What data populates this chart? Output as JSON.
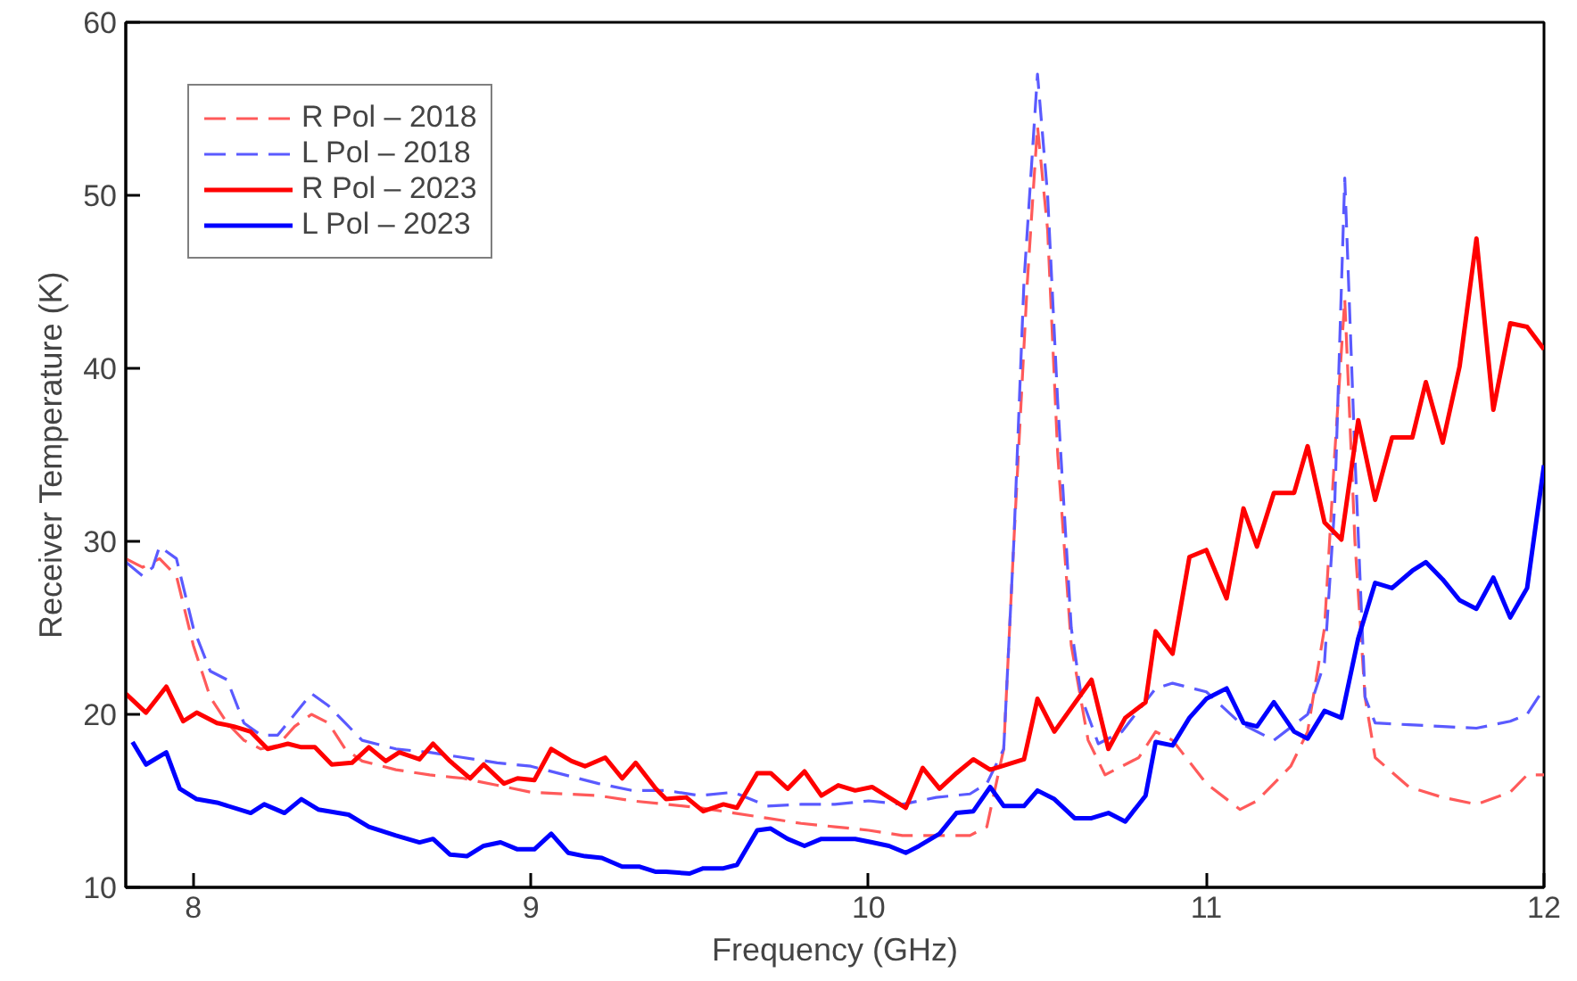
{
  "chart_data": {
    "type": "line",
    "xlabel": "Frequency (GHz)",
    "ylabel": "Receiver Temperature (K)",
    "xlim": [
      7.8,
      12.0
    ],
    "ylim": [
      10,
      60
    ],
    "xticks": [
      8,
      9,
      10,
      11,
      12
    ],
    "yticks": [
      10,
      20,
      30,
      40,
      50,
      60
    ],
    "grid": false,
    "legend": "top left",
    "marker": "none",
    "series": [
      {
        "name": "R Pol – 2018",
        "color": "#ff5a5a",
        "line_style": "dashed",
        "x": [
          7.8,
          7.85,
          7.9,
          7.95,
          8.0,
          8.05,
          8.1,
          8.15,
          8.2,
          8.25,
          8.3,
          8.35,
          8.4,
          8.45,
          8.5,
          8.6,
          8.7,
          8.8,
          8.9,
          9.0,
          9.1,
          9.2,
          9.3,
          9.4,
          9.5,
          9.6,
          9.7,
          9.8,
          9.9,
          10.0,
          10.1,
          10.2,
          10.3,
          10.35,
          10.4,
          10.43,
          10.47,
          10.5,
          10.53,
          10.56,
          10.6,
          10.65,
          10.7,
          10.8,
          10.85,
          10.9,
          11.0,
          11.1,
          11.15,
          11.25,
          11.3,
          11.35,
          11.38,
          11.41,
          11.44,
          11.47,
          11.5,
          11.6,
          11.7,
          11.8,
          11.9,
          11.95,
          12.0
        ],
        "values": [
          29,
          28.5,
          29,
          28,
          24,
          21,
          19.5,
          18.5,
          18,
          18.2,
          19.3,
          20,
          19.5,
          18,
          17.3,
          16.8,
          16.5,
          16.3,
          15.9,
          15.5,
          15.4,
          15.3,
          15,
          14.8,
          14.6,
          14.3,
          14,
          13.7,
          13.5,
          13.3,
          13,
          13,
          13,
          13.5,
          18,
          30,
          45,
          54,
          48,
          35,
          24,
          18.5,
          16.5,
          17.5,
          19,
          18.5,
          16,
          14.5,
          15,
          17,
          19,
          25,
          35,
          44,
          30,
          21,
          17.5,
          15.8,
          15.2,
          14.8,
          15.5,
          16.5,
          16.5
        ]
      },
      {
        "name": "L Pol – 2018",
        "color": "#5a5aff",
        "line_style": "dashed",
        "x": [
          7.8,
          7.85,
          7.88,
          7.9,
          7.95,
          8.0,
          8.05,
          8.1,
          8.15,
          8.2,
          8.25,
          8.3,
          8.35,
          8.4,
          8.45,
          8.5,
          8.6,
          8.7,
          8.8,
          8.9,
          9.0,
          9.1,
          9.2,
          9.3,
          9.4,
          9.5,
          9.6,
          9.7,
          9.8,
          9.9,
          10.0,
          10.1,
          10.2,
          10.3,
          10.35,
          10.4,
          10.43,
          10.46,
          10.5,
          10.53,
          10.56,
          10.6,
          10.63,
          10.68,
          10.75,
          10.85,
          10.9,
          11.0,
          11.1,
          11.2,
          11.3,
          11.35,
          11.38,
          11.41,
          11.44,
          11.47,
          11.5,
          11.6,
          11.7,
          11.8,
          11.9,
          11.95,
          12.0
        ],
        "values": [
          28.8,
          28,
          28.5,
          29.7,
          29,
          25,
          22.5,
          22,
          19.5,
          18.8,
          18.8,
          20,
          21.2,
          20.5,
          19.5,
          18.5,
          18,
          17.8,
          17.5,
          17.2,
          17,
          16.5,
          16,
          15.6,
          15.6,
          15.3,
          15.5,
          14.7,
          14.8,
          14.8,
          15,
          14.8,
          15.2,
          15.4,
          16,
          18,
          30,
          45,
          57,
          50,
          38,
          25,
          21,
          18.3,
          19,
          21.5,
          21.8,
          21.3,
          19.5,
          18.5,
          20,
          23,
          32,
          51,
          35,
          21,
          19.5,
          19.4,
          19.3,
          19.2,
          19.6,
          20,
          21.5
        ]
      },
      {
        "name": "R Pol – 2023",
        "color": "#ff0000",
        "line_style": "solid",
        "x": [
          7.8,
          7.86,
          7.92,
          7.97,
          8.01,
          8.07,
          8.12,
          8.17,
          8.22,
          8.28,
          8.32,
          8.36,
          8.41,
          8.47,
          8.52,
          8.57,
          8.61,
          8.67,
          8.71,
          8.76,
          8.82,
          8.86,
          8.92,
          8.96,
          9.01,
          9.06,
          9.12,
          9.16,
          9.22,
          9.27,
          9.31,
          9.37,
          9.4,
          9.46,
          9.51,
          9.57,
          9.61,
          9.67,
          9.71,
          9.76,
          9.81,
          9.86,
          9.91,
          9.96,
          10.01,
          10.06,
          10.11,
          10.16,
          10.21,
          10.26,
          10.31,
          10.36,
          10.46,
          10.5,
          10.55,
          10.66,
          10.71,
          10.76,
          10.82,
          10.85,
          10.9,
          10.95,
          11.0,
          11.06,
          11.11,
          11.15,
          11.2,
          11.26,
          11.3,
          11.35,
          11.4,
          11.45,
          11.5,
          11.55,
          11.61,
          11.65,
          11.7,
          11.75,
          11.8,
          11.85,
          11.9,
          11.95,
          12.0
        ],
        "values": [
          21.2,
          20.1,
          21.6,
          19.6,
          20.1,
          19.5,
          19.3,
          19.0,
          18.0,
          18.3,
          18.1,
          18.1,
          17.1,
          17.2,
          18.1,
          17.3,
          17.8,
          17.4,
          18.3,
          17.3,
          16.3,
          17.1,
          16.0,
          16.3,
          16.2,
          18.0,
          17.3,
          17.0,
          17.5,
          16.3,
          17.2,
          15.7,
          15.1,
          15.2,
          14.4,
          14.8,
          14.6,
          16.6,
          16.6,
          15.7,
          16.7,
          15.3,
          15.9,
          15.6,
          15.8,
          15.2,
          14.6,
          16.9,
          15.7,
          16.6,
          17.4,
          16.8,
          17.4,
          20.9,
          19.0,
          22.0,
          18.0,
          19.8,
          20.7,
          24.8,
          23.5,
          29.1,
          29.5,
          26.7,
          31.9,
          29.7,
          32.8,
          32.8,
          35.5,
          31.1,
          30.1,
          37.0,
          32.4,
          36.0,
          36.0,
          39.2,
          35.7,
          40.1,
          47.5,
          37.6,
          42.6,
          42.4,
          41.1
        ]
      },
      {
        "name": "L Pol – 2023",
        "color": "#0000ff",
        "line_style": "solid",
        "x": [
          7.82,
          7.86,
          7.92,
          7.96,
          8.01,
          8.07,
          8.17,
          8.21,
          8.27,
          8.32,
          8.37,
          8.46,
          8.52,
          8.6,
          8.67,
          8.71,
          8.76,
          8.81,
          8.86,
          8.91,
          8.96,
          9.01,
          9.06,
          9.11,
          9.16,
          9.21,
          9.27,
          9.32,
          9.37,
          9.4,
          9.47,
          9.51,
          9.57,
          9.61,
          9.67,
          9.71,
          9.76,
          9.81,
          9.86,
          9.91,
          9.96,
          10.01,
          10.06,
          10.11,
          10.15,
          10.21,
          10.26,
          10.31,
          10.36,
          10.4,
          10.46,
          10.5,
          10.55,
          10.61,
          10.66,
          10.71,
          10.76,
          10.82,
          10.85,
          10.9,
          10.95,
          11.0,
          11.06,
          11.11,
          11.15,
          11.2,
          11.26,
          11.3,
          11.35,
          11.4,
          11.45,
          11.5,
          11.55,
          11.61,
          11.65,
          11.7,
          11.75,
          11.8,
          11.85,
          11.9,
          11.95,
          12.0
        ],
        "values": [
          18.4,
          17.1,
          17.8,
          15.7,
          15.1,
          14.9,
          14.3,
          14.8,
          14.3,
          15.1,
          14.5,
          14.2,
          13.5,
          13.0,
          12.6,
          12.8,
          11.9,
          11.8,
          12.4,
          12.6,
          12.2,
          12.2,
          13.1,
          12.0,
          11.8,
          11.7,
          11.2,
          11.2,
          10.9,
          10.9,
          10.8,
          11.1,
          11.1,
          11.3,
          13.3,
          13.4,
          12.8,
          12.4,
          12.8,
          12.8,
          12.8,
          12.6,
          12.4,
          12.0,
          12.4,
          13.1,
          14.3,
          14.4,
          15.8,
          14.7,
          14.7,
          15.6,
          15.1,
          14.0,
          14.0,
          14.3,
          13.8,
          15.3,
          18.4,
          18.2,
          19.8,
          20.9,
          21.5,
          19.5,
          19.3,
          20.7,
          19.0,
          18.6,
          20.2,
          19.8,
          24.4,
          27.6,
          27.3,
          28.3,
          28.8,
          27.8,
          26.6,
          26.1,
          27.9,
          25.6,
          27.3,
          34.4
        ]
      }
    ]
  }
}
